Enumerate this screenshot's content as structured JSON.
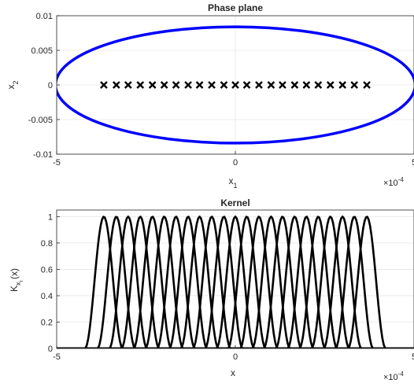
{
  "chart_data": [
    {
      "type": "line",
      "title": "Phase plane",
      "xlabel": "x",
      "xlabel_sub": "1",
      "ylabel": "x",
      "ylabel_sub": "2",
      "xlim": [
        -5,
        5
      ],
      "ylim": [
        -0.01,
        0.01
      ],
      "x_exponent_label": "×10",
      "x_exponent": "-4",
      "xticks": [
        -5,
        0,
        5
      ],
      "xtick_labels": [
        "-5",
        "0",
        "5"
      ],
      "yticks": [
        -0.01,
        -0.005,
        0,
        0.005,
        0.01
      ],
      "ytick_labels": [
        "-0.01",
        "-0.005",
        "0",
        "0.005",
        "0.01"
      ],
      "grid": true,
      "series": [
        {
          "kind": "ellipse",
          "color": "#0000ff",
          "center": [
            0,
            0
          ],
          "semi_axis_x": 5.03,
          "semi_axis_y": 0.0084
        },
        {
          "kind": "markers",
          "marker": "x",
          "color": "#000000",
          "x": [
            -3.68,
            -3.33,
            -3.0,
            -2.66,
            -2.32,
            -1.99,
            -1.66,
            -1.32,
            -1.0,
            -0.66,
            -0.32,
            0.0,
            0.32,
            0.66,
            1.0,
            1.32,
            1.66,
            1.99,
            2.32,
            2.66,
            3.0,
            3.33,
            3.68
          ],
          "y": 0
        }
      ]
    },
    {
      "type": "line",
      "title": "Kernel",
      "xlabel": "x",
      "ylabel": "K",
      "ylabel_sub": "x",
      "ylabel_subsub": "i",
      "ylabel_tail": "(x)",
      "xlim": [
        -5,
        5
      ],
      "ylim": [
        0,
        1.05
      ],
      "x_exponent_label": "×10",
      "x_exponent": "-4",
      "xticks": [
        -5,
        0,
        5
      ],
      "xtick_labels": [
        "-5",
        "0",
        "5"
      ],
      "yticks": [
        0,
        0.2,
        0.4,
        0.6,
        0.8,
        1
      ],
      "ytick_labels": [
        "0",
        "0.2",
        "0.4",
        "0.6",
        "0.8",
        "1"
      ],
      "grid": true,
      "series_color": "#000000",
      "kernel_centers": [
        -3.68,
        -3.33,
        -3.0,
        -2.66,
        -2.32,
        -1.99,
        -1.66,
        -1.32,
        -1.0,
        -0.66,
        -0.32,
        0.0,
        0.32,
        0.66,
        1.0,
        1.32,
        1.66,
        1.99,
        2.32,
        2.66,
        3.0,
        3.33,
        3.68
      ],
      "kernel_peak": 1,
      "kernel_half_support": 0.53
    }
  ]
}
